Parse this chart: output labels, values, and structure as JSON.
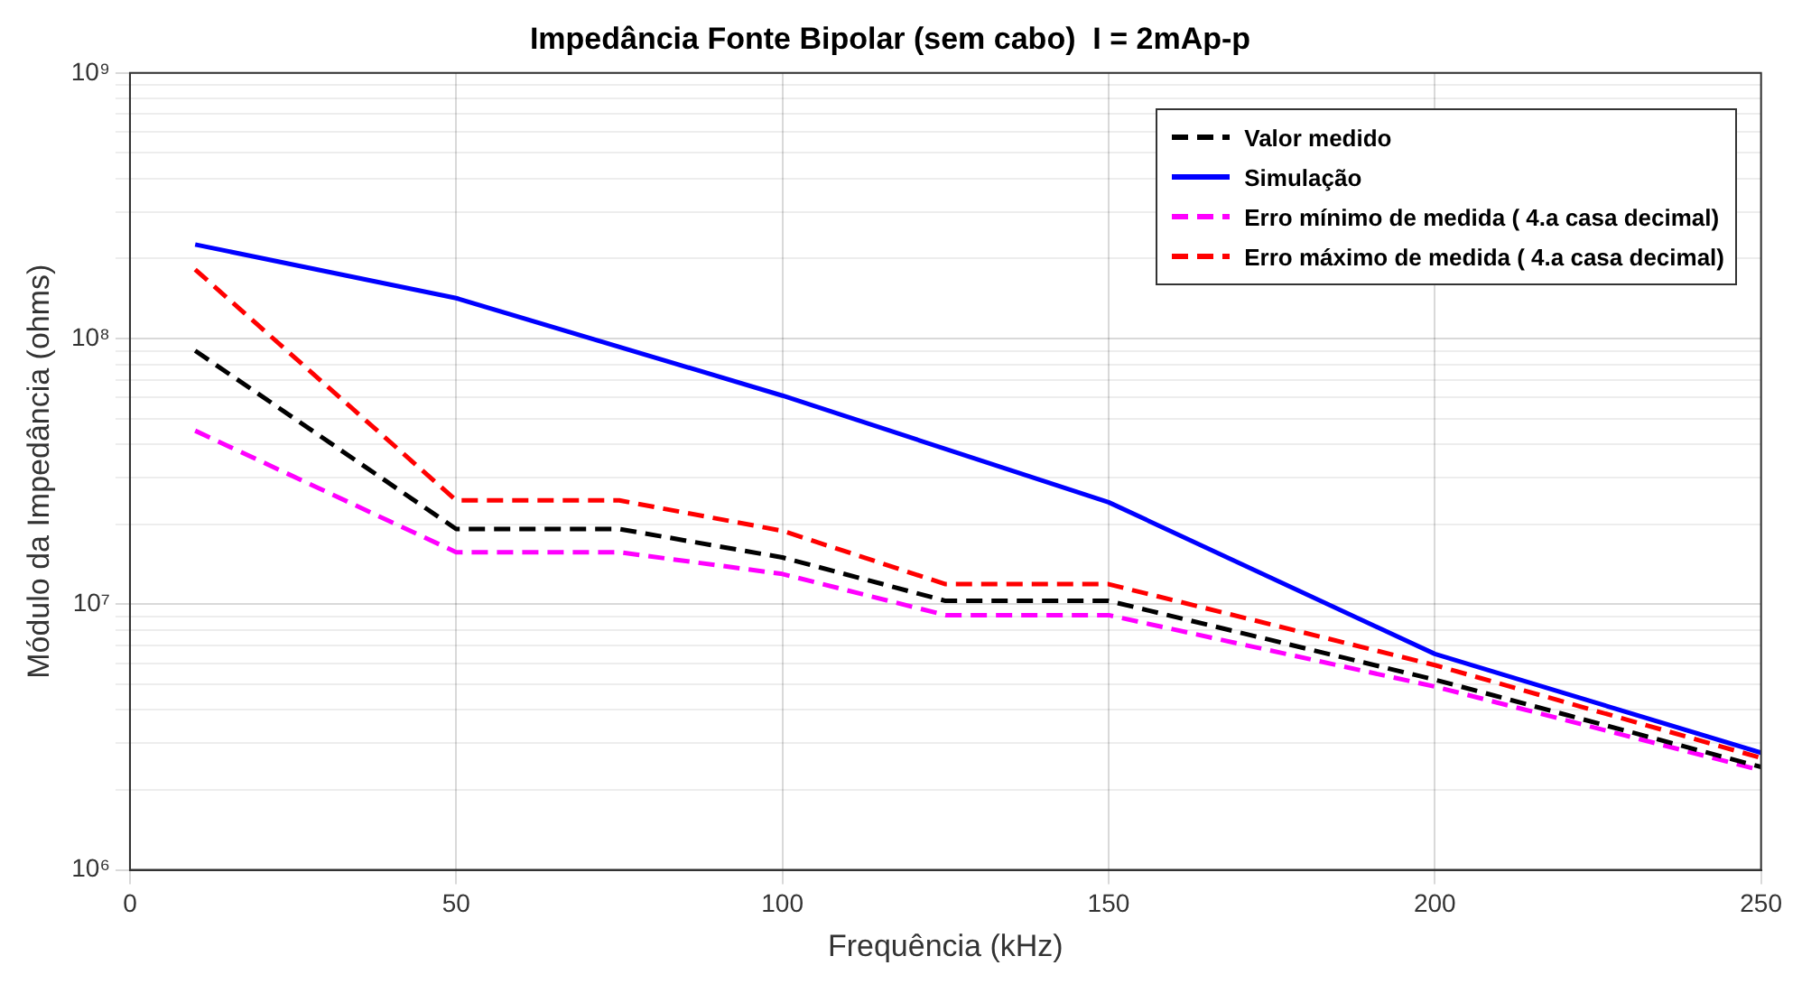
{
  "chart_data": {
    "type": "line",
    "title": "Impedância Fonte Bipolar (sem cabo)  I = 2mAp-p",
    "xlabel": "Frequência (kHz)",
    "ylabel": "Módulo da Impedância (ohms)",
    "x": [
      10,
      50,
      75,
      100,
      125,
      150,
      200,
      250
    ],
    "series": [
      {
        "name": "Valor medido",
        "color": "#000000",
        "line_style": "dashed",
        "values": [
          90000000,
          19200000,
          19200000,
          15000000,
          10300000,
          10300000,
          5200000,
          2440000
        ]
      },
      {
        "name": "Simulação",
        "color": "#0000ff",
        "line_style": "solid",
        "values": [
          226000000,
          142000000,
          null,
          61000000,
          null,
          24200000,
          6500000,
          2760000
        ]
      },
      {
        "name": "Erro mínimo de medida ( 4.a casa decimal)",
        "color": "#ff00ff",
        "line_style": "dashed",
        "values": [
          45000000,
          15700000,
          15700000,
          13000000,
          9100000,
          9100000,
          4900000,
          2370000
        ]
      },
      {
        "name": "Erro máximo de medida ( 4.a casa decimal)",
        "color": "#ff0000",
        "line_style": "dashed",
        "values": [
          182000000,
          24600000,
          24600000,
          18900000,
          11900000,
          11900000,
          5900000,
          2640000
        ]
      }
    ],
    "log": "y",
    "xlim": [
      0,
      250
    ],
    "ylim": [
      1000000,
      1000000000
    ],
    "xticks": [
      0,
      50,
      100,
      150,
      200,
      250
    ],
    "yticks": [
      {
        "value": 1000000,
        "label": "10⁶"
      },
      {
        "value": 2000000,
        "label": null
      },
      {
        "value": 3000000,
        "label": null
      },
      {
        "value": 4000000,
        "label": null
      },
      {
        "value": 5000000,
        "label": null
      },
      {
        "value": 6000000,
        "label": null
      },
      {
        "value": 7000000,
        "label": null
      },
      {
        "value": 8000000,
        "label": null
      },
      {
        "value": 9000000,
        "label": null
      },
      {
        "value": 10000000,
        "label": "10⁷"
      },
      {
        "value": 20000000,
        "label": null
      },
      {
        "value": 30000000,
        "label": null
      },
      {
        "value": 40000000,
        "label": null
      },
      {
        "value": 50000000,
        "label": null
      },
      {
        "value": 60000000,
        "label": null
      },
      {
        "value": 70000000,
        "label": null
      },
      {
        "value": 80000000,
        "label": null
      },
      {
        "value": 90000000,
        "label": null
      },
      {
        "value": 100000000,
        "label": "10⁸"
      },
      {
        "value": 200000000,
        "label": null
      },
      {
        "value": 300000000,
        "label": null
      },
      {
        "value": 400000000,
        "label": null
      },
      {
        "value": 500000000,
        "label": null
      },
      {
        "value": 600000000,
        "label": null
      },
      {
        "value": 700000000,
        "label": null
      },
      {
        "value": 800000000,
        "label": null
      },
      {
        "value": 900000000,
        "label": null
      },
      {
        "value": 1000000000,
        "label": "10⁹"
      }
    ],
    "grid": true,
    "legend": "top right",
    "marker": "none"
  }
}
